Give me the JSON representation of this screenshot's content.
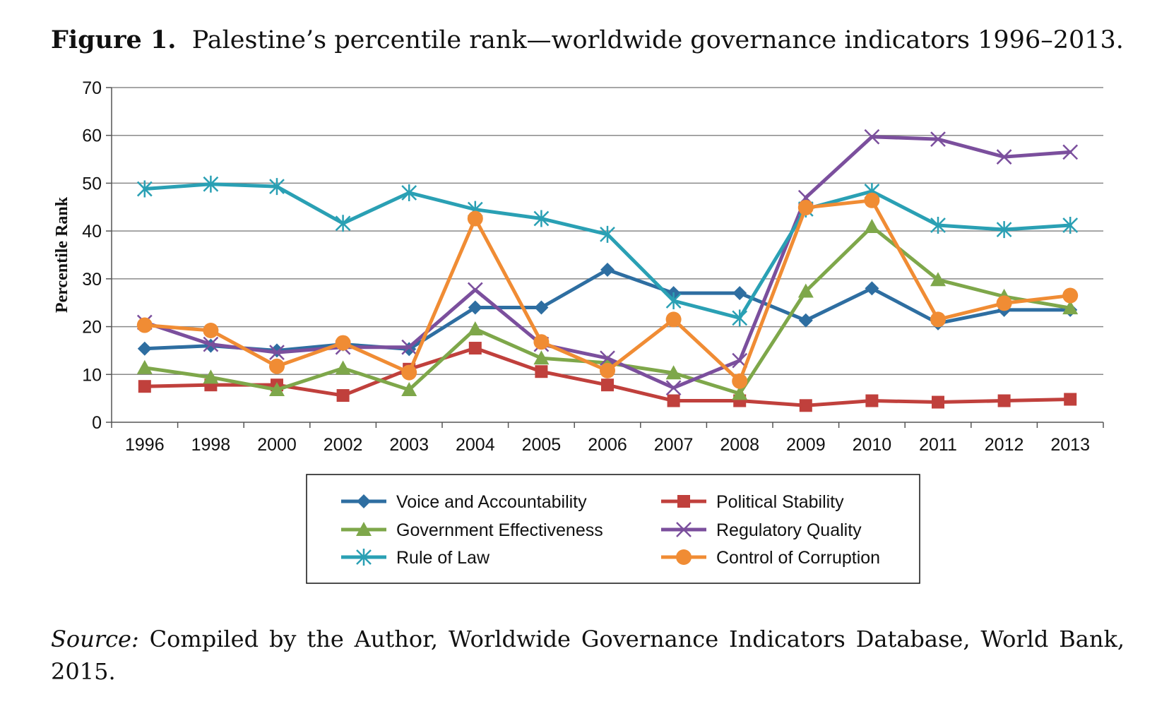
{
  "caption": {
    "label": "Figure 1.",
    "text": "Palestine’s percentile rank—worldwide governance indicators 1996–2013."
  },
  "source": {
    "label": "Source:",
    "text": "Compiled by the Author, Worldwide Governance Indicators Database, World Bank, 2015."
  },
  "chart_data": {
    "type": "line",
    "title": "",
    "xlabel": "",
    "ylabel": "Percentile Rank",
    "ylim": [
      0,
      70
    ],
    "yticks": [
      0,
      10,
      20,
      30,
      40,
      50,
      60,
      70
    ],
    "grid": true,
    "legend_position": "bottom",
    "x": [
      "1996",
      "1998",
      "2000",
      "2002",
      "2003",
      "2004",
      "2005",
      "2006",
      "2007",
      "2008",
      "2009",
      "2010",
      "2011",
      "2012",
      "2013"
    ],
    "series": [
      {
        "name": "Voice and Accountability",
        "color": "#2e6ea1",
        "marker": "diamond",
        "values": [
          15.4,
          16.0,
          15.0,
          16.3,
          15.3,
          24.0,
          24.0,
          31.9,
          27.0,
          27.0,
          21.3,
          28.0,
          20.7,
          23.5,
          23.5
        ]
      },
      {
        "name": "Political Stability",
        "color": "#c0403c",
        "marker": "square",
        "values": [
          7.5,
          7.8,
          7.8,
          5.6,
          11.1,
          15.5,
          10.6,
          7.8,
          4.5,
          4.5,
          3.5,
          4.5,
          4.2,
          4.5,
          4.8
        ]
      },
      {
        "name": "Government Effectiveness",
        "color": "#7ea74a",
        "marker": "triangle",
        "values": [
          11.4,
          9.4,
          6.8,
          11.3,
          6.8,
          19.5,
          13.4,
          12.4,
          10.3,
          6.0,
          27.4,
          40.9,
          29.8,
          26.3,
          23.9
        ]
      },
      {
        "name": "Regulatory Quality",
        "color": "#7b4f9d",
        "marker": "x",
        "values": [
          20.9,
          16.3,
          14.6,
          15.7,
          15.7,
          27.7,
          16.3,
          13.4,
          7.2,
          12.9,
          47.0,
          59.7,
          59.2,
          55.5,
          56.5
        ]
      },
      {
        "name": "Rule of Law",
        "color": "#2aa0b4",
        "marker": "asterisk",
        "values": [
          48.8,
          49.8,
          49.3,
          41.6,
          48.0,
          44.5,
          42.6,
          39.3,
          25.4,
          21.8,
          44.6,
          48.3,
          41.2,
          40.3,
          41.2
        ]
      },
      {
        "name": "Control of Corruption",
        "color": "#f08c34",
        "marker": "circle",
        "values": [
          20.3,
          19.2,
          11.7,
          16.6,
          10.4,
          42.6,
          16.8,
          10.8,
          21.5,
          8.6,
          44.9,
          46.4,
          21.5,
          24.9,
          26.5
        ]
      }
    ]
  }
}
